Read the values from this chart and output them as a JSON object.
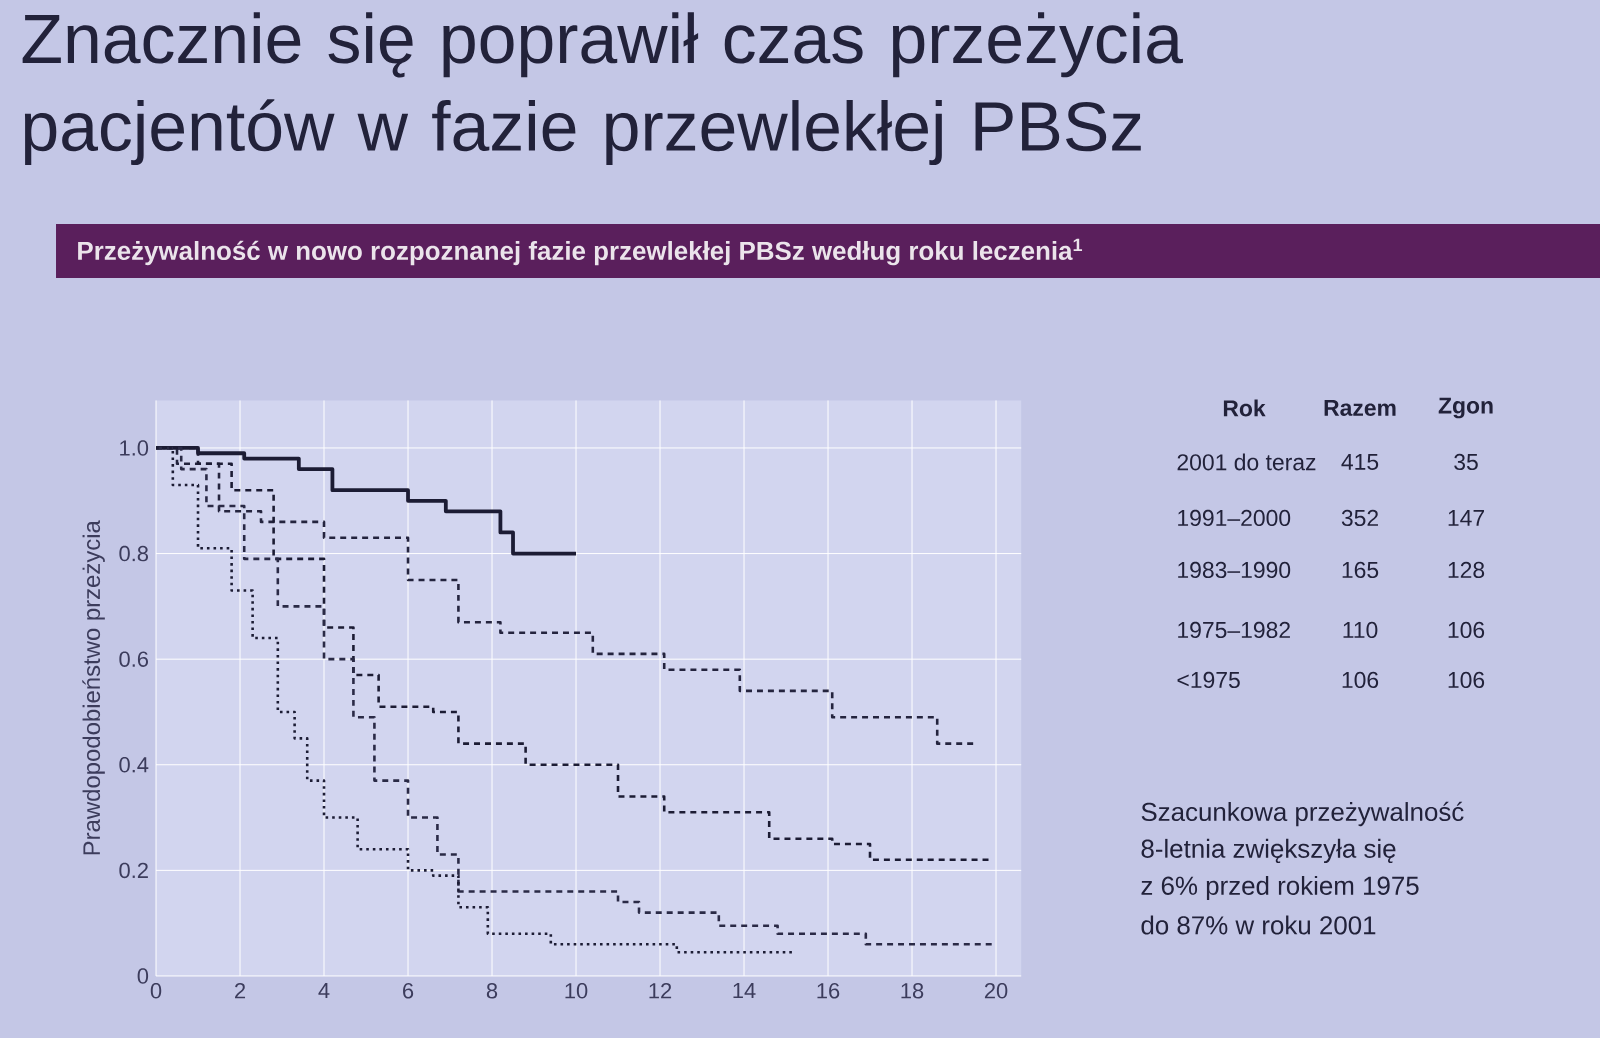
{
  "chart_data": {
    "type": "step",
    "title": "Znacznie się poprawił czas przeżycia pacjentów w fazie przewlekłej PBSz",
    "subtitle": "Przeżywalność w nowo rozpoznanej fazie przewlekłej PBSz według roku leczenia$^{1}$",
    "ylabel": "Prawdopodobieństwo przeżycia",
    "xlim": [
      0,
      20.6
    ],
    "ylim": [
      0,
      1.09
    ],
    "xticks": [
      0,
      2,
      4,
      6,
      8,
      10,
      12,
      14,
      16,
      18,
      20
    ],
    "yticks": [
      0,
      {
        "value": 0.2,
        "label": "0.2"
      },
      {
        "value": 0.4,
        "label": "0.4"
      },
      {
        "value": 0.6,
        "label": "0.6"
      },
      {
        "value": 0.8,
        "label": "0.8"
      },
      {
        "value": 1,
        "label": "1.0"
      }
    ],
    "grid": true,
    "legend": false,
    "series": [
      {
        "name": "2001 do teraz",
        "color": "#1c1c34",
        "line_style": "solid",
        "x": [
          0,
          1.0,
          2.1,
          3.4,
          4.2,
          6.0,
          6.9,
          8.2,
          8.5,
          10.0
        ],
        "values": [
          1.0,
          0.99,
          0.98,
          0.96,
          0.92,
          0.9,
          0.88,
          0.84,
          0.8,
          0.8
        ]
      },
      {
        "name": "1991–2000",
        "color": "#24243e",
        "line_style": "dashed",
        "x": [
          0,
          0.5,
          1.5,
          2.5,
          4.0,
          6.0,
          7.2,
          8.2,
          10.4,
          12.1,
          13.9,
          15.3,
          16.1,
          18.6,
          19.5
        ],
        "values": [
          1.0,
          0.97,
          0.88,
          0.86,
          0.83,
          0.75,
          0.67,
          0.65,
          0.61,
          0.58,
          0.54,
          0.54,
          0.49,
          0.44,
          0.44
        ]
      },
      {
        "name": "1983–1990",
        "color": "#1c1c34",
        "line_style": "dashed",
        "x": [
          0,
          1.0,
          1.8,
          2.8,
          4.0,
          4.7,
          5.3,
          6.6,
          7.2,
          8.8,
          11.0,
          12.1,
          14.6,
          16.1,
          17.0,
          19.9
        ],
        "values": [
          1.0,
          0.97,
          0.92,
          0.79,
          0.66,
          0.57,
          0.51,
          0.5,
          0.44,
          0.4,
          0.34,
          0.31,
          0.26,
          0.25,
          0.22,
          0.22
        ]
      },
      {
        "name": "1975–1982",
        "color": "#2a2a46",
        "line_style": "dashed",
        "x": [
          0,
          0.6,
          1.2,
          2.1,
          2.9,
          4.0,
          4.7,
          5.2,
          6.0,
          6.7,
          7.2,
          8.8,
          11.0,
          11.5,
          13.4,
          14.8,
          16.9,
          19.9
        ],
        "values": [
          1.0,
          0.96,
          0.89,
          0.79,
          0.7,
          0.6,
          0.49,
          0.37,
          0.3,
          0.23,
          0.16,
          0.16,
          0.14,
          0.12,
          0.095,
          0.08,
          0.06,
          0.06
        ]
      },
      {
        "name": "<1975",
        "color": "#1c1c34",
        "line_style": "dotted",
        "x": [
          0,
          0.4,
          1.0,
          1.8,
          2.3,
          2.9,
          3.3,
          3.6,
          4.0,
          4.8,
          6.0,
          6.6,
          7.2,
          7.9,
          9.4,
          11.8,
          12.4,
          15.2
        ],
        "values": [
          1.0,
          0.93,
          0.81,
          0.73,
          0.64,
          0.5,
          0.45,
          0.37,
          0.3,
          0.24,
          0.2,
          0.19,
          0.13,
          0.08,
          0.06,
          0.06,
          0.045,
          0.045
        ]
      }
    ],
    "annotations": [
      "Rok",
      "Razem",
      "Zgon",
      "415",
      "35",
      "352",
      "147",
      "165",
      "128",
      "110",
      "106",
      "106",
      "106",
      "Szacunkowa przeżywalność",
      "8-letnia zwiększyła się",
      "z 6% przed rokiem 1975",
      "do 87% w roku 2001"
    ]
  }
}
